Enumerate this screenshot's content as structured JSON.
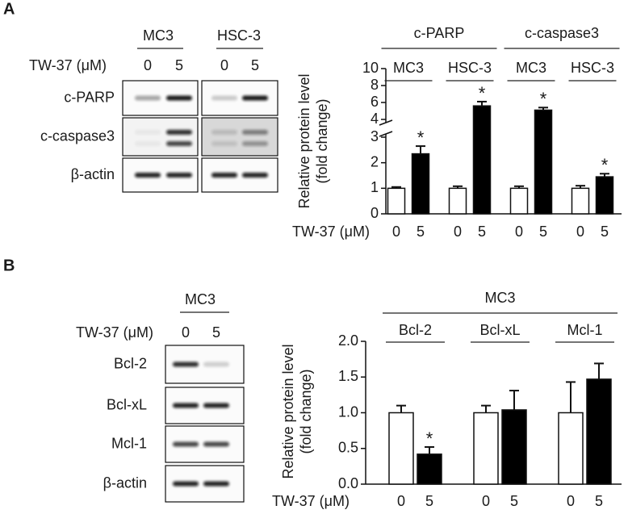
{
  "panels": [
    "A",
    "B"
  ],
  "blots": [
    {
      "columns": [
        "MC3",
        "HSC-3"
      ],
      "treatment": "TW-37 (μM)",
      "lanes": [
        "0",
        "5",
        "0",
        "5"
      ],
      "rows": [
        "c-PARP",
        "c-caspase3",
        "β-actin"
      ]
    },
    {
      "columns": [
        "MC3"
      ],
      "treatment": "TW-37 (μM)",
      "lanes": [
        "0",
        "5"
      ],
      "rows": [
        "Bcl-2",
        "Bcl-xL",
        "Mcl-1",
        "β-actin"
      ]
    }
  ],
  "chart_data": [
    {
      "type": "bar",
      "ylabel": [
        "Relative protein level",
        "(fold change)"
      ],
      "xlabel": "TW-37 (μM)",
      "supergroups": [
        "c-PARP",
        "c-caspase3"
      ],
      "groups": [
        "MC3",
        "HSC-3",
        "MC3",
        "HSC-3"
      ],
      "categories": [
        "0",
        "5",
        "0",
        "5",
        "0",
        "5",
        "0",
        "5"
      ],
      "values": [
        1.0,
        2.35,
        1.0,
        5.6,
        1.0,
        5.1,
        1.0,
        1.45
      ],
      "errors": [
        0.05,
        0.3,
        0.08,
        0.5,
        0.08,
        0.3,
        0.1,
        0.12
      ],
      "colors": [
        "#ffffff",
        "#000000",
        "#ffffff",
        "#000000",
        "#ffffff",
        "#000000",
        "#ffffff",
        "#000000"
      ],
      "annotations": [
        {
          "text": "*",
          "index": 1
        },
        {
          "text": "*",
          "index": 3
        },
        {
          "text": "*",
          "index": 5
        },
        {
          "text": "*",
          "index": 7
        }
      ],
      "ylim": [
        0,
        10
      ],
      "ybreak": [
        3,
        4
      ],
      "yticks": [
        0,
        1,
        2,
        3,
        4,
        6,
        8,
        10
      ]
    },
    {
      "type": "bar",
      "ylabel": [
        "Relative protein level",
        "(fold change)"
      ],
      "xlabel": "TW-37 (μM)",
      "supergroups": [
        "MC3"
      ],
      "groups": [
        "Bcl-2",
        "Bcl-xL",
        "Mcl-1"
      ],
      "categories": [
        "0",
        "5",
        "0",
        "5",
        "0",
        "5"
      ],
      "values": [
        1.0,
        0.42,
        1.0,
        1.04,
        1.0,
        1.47
      ],
      "errors": [
        0.1,
        0.1,
        0.1,
        0.27,
        0.43,
        0.22
      ],
      "colors": [
        "#ffffff",
        "#000000",
        "#ffffff",
        "#000000",
        "#ffffff",
        "#000000"
      ],
      "annotations": [
        {
          "text": "*",
          "index": 1
        }
      ],
      "ylim": [
        0,
        2
      ],
      "yticks": [
        {
          "value": 0,
          "label": "0.0"
        },
        0.5,
        {
          "value": 1,
          "label": "1.0"
        },
        1.5,
        {
          "value": 2,
          "label": "2.0"
        }
      ]
    }
  ]
}
